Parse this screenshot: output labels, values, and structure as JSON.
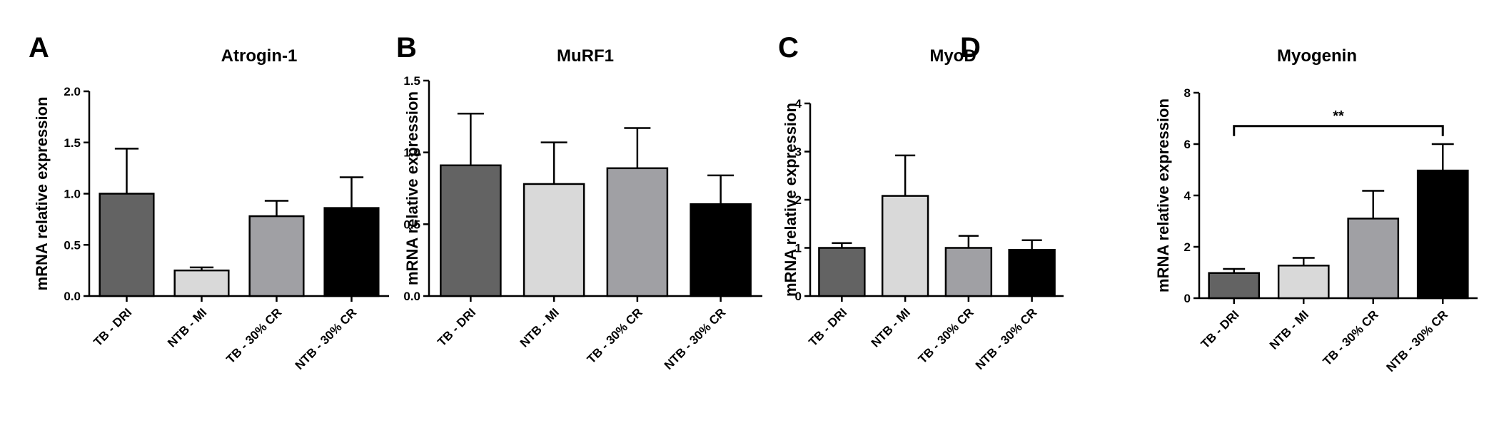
{
  "chart_data": [
    {
      "type": "bar",
      "panel": "A",
      "title": "Atrogin-1",
      "ylabel": "mRNA relative expression",
      "xlabel": "",
      "categories": [
        "TB - DRI",
        "NTB - MI",
        "TB - 30% CR",
        "NTB - 30% CR"
      ],
      "values": [
        1.0,
        0.25,
        0.78,
        0.86
      ],
      "errors": [
        0.44,
        0.03,
        0.15,
        0.3
      ],
      "bar_colors": [
        "#636363",
        "#d9d9d9",
        "#a0a0a4",
        "#000000"
      ],
      "ylim": [
        0,
        2.0
      ],
      "yticks": [
        "0.0",
        "0.5",
        "1.0",
        "1.5",
        "2.0"
      ],
      "grid": false,
      "legend": "none",
      "significance": []
    },
    {
      "type": "bar",
      "panel": "B",
      "title": "MuRF1",
      "ylabel": "mRNA relative expression",
      "xlabel": "",
      "categories": [
        "TB - DRI",
        "NTB - MI",
        "TB - 30% CR",
        "NTB - 30% CR"
      ],
      "values": [
        0.91,
        0.78,
        0.89,
        0.64
      ],
      "errors": [
        0.36,
        0.29,
        0.28,
        0.2
      ],
      "bar_colors": [
        "#636363",
        "#d9d9d9",
        "#a0a0a4",
        "#000000"
      ],
      "ylim": [
        0,
        1.5
      ],
      "yticks": [
        "0.0",
        "0.5",
        "1.0",
        "1.5"
      ],
      "grid": false,
      "legend": "none",
      "significance": []
    },
    {
      "type": "bar",
      "panel": "C",
      "title": "MyoD",
      "ylabel": "mRNA relative expression",
      "xlabel": "",
      "categories": [
        "TB - DRI",
        "NTB - MI",
        "TB - 30% CR",
        "NTB - 30% CR"
      ],
      "values": [
        1.0,
        2.08,
        1.0,
        0.96
      ],
      "errors": [
        0.1,
        0.84,
        0.25,
        0.2
      ],
      "bar_colors": [
        "#636363",
        "#d9d9d9",
        "#a0a0a4",
        "#000000"
      ],
      "ylim": [
        0,
        4
      ],
      "yticks": [
        "0",
        "1",
        "2",
        "3",
        "4"
      ],
      "grid": false,
      "legend": "none",
      "significance": []
    },
    {
      "type": "bar",
      "panel": "D",
      "title": "Myogenin",
      "ylabel": "mRNA relative expression",
      "xlabel": "",
      "categories": [
        "TB - DRI",
        "NTB - MI",
        "TB - 30% CR",
        "NTB - 30% CR"
      ],
      "values": [
        0.98,
        1.27,
        3.1,
        4.97
      ],
      "errors": [
        0.16,
        0.3,
        1.08,
        1.03
      ],
      "bar_colors": [
        "#636363",
        "#d9d9d9",
        "#a0a0a4",
        "#000000"
      ],
      "ylim": [
        0,
        8
      ],
      "yticks": [
        "0",
        "2",
        "4",
        "6",
        "8"
      ],
      "grid": false,
      "legend": "none",
      "significance": [
        {
          "from": 0,
          "to": 3,
          "label": "**",
          "y": 6.7
        }
      ]
    }
  ]
}
